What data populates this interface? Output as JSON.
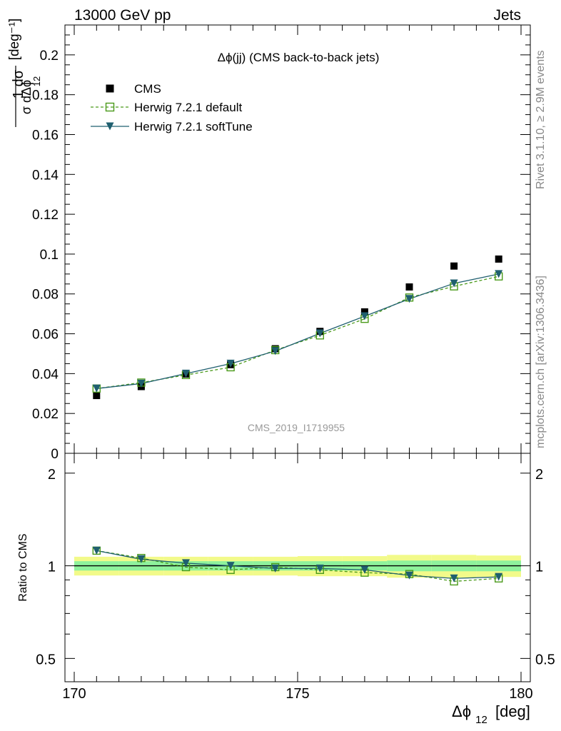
{
  "header": {
    "left": "13000 GeV pp",
    "right": "Jets"
  },
  "side_text": {
    "rivet": "Rivet 3.1.10, ≥ 2.9M events",
    "mcplots": "mcplots.cern.ch [arXiv:1306.3436]"
  },
  "chart_data": {
    "type": "scatter",
    "title": "Δϕ(jj) (CMS back-to-back jets)",
    "analysis_id": "CMS_2019_I1719955",
    "xlabel": "Δϕ",
    "xlabel_sub": "12",
    "xlabel_unit": "[deg]",
    "ylabel_main": "1/σ dσ/dΔϕ 12 [deg-1]",
    "ylabel_ratio": "Ratio to CMS",
    "xlim": [
      170,
      180
    ],
    "ylim_main": [
      0,
      0.215
    ],
    "ylim_ratio": [
      0.42,
      2.32
    ],
    "x_ticks": [
      "170",
      "175",
      "180"
    ],
    "y_ticks_main": [
      "0",
      "0.02",
      "0.04",
      "0.06",
      "0.08",
      "0.1",
      "0.12",
      "0.14",
      "0.16",
      "0.18",
      "0.2"
    ],
    "y_ticks_ratio": [
      "0.5",
      "1",
      "2"
    ],
    "legend_position": "top-left",
    "x": [
      170.5,
      171.5,
      172.5,
      173.5,
      174.5,
      175.5,
      176.5,
      177.5,
      178.5,
      179.5
    ],
    "series": [
      {
        "name": "CMS",
        "marker": "square-filled",
        "color": "#000000",
        "values": [
          0.029,
          0.0335,
          0.0398,
          0.0445,
          0.0525,
          0.0612,
          0.071,
          0.0835,
          0.094,
          0.0975
        ],
        "ratio": [
          1,
          1,
          1,
          1,
          1,
          1,
          1,
          1,
          1,
          1
        ]
      },
      {
        "name": "Herwig 7.2.1 default",
        "marker": "square-open",
        "line": "dashed",
        "color": "#4a9a1a",
        "values": [
          0.0325,
          0.0355,
          0.0393,
          0.0432,
          0.0518,
          0.0592,
          0.0675,
          0.0782,
          0.0838,
          0.0888
        ],
        "ratio": [
          1.12,
          1.06,
          0.99,
          0.97,
          0.99,
          0.97,
          0.95,
          0.94,
          0.89,
          0.91
        ]
      },
      {
        "name": "Herwig 7.2.1 softTune",
        "marker": "triangle-down-filled",
        "line": "solid",
        "color": "#1f5f6f",
        "values": [
          0.0325,
          0.035,
          0.04,
          0.045,
          0.0513,
          0.0602,
          0.0688,
          0.0775,
          0.0853,
          0.09
        ],
        "ratio": [
          1.12,
          1.05,
          1.02,
          1.0,
          0.98,
          0.98,
          0.97,
          0.93,
          0.91,
          0.92
        ]
      }
    ],
    "uncertainty_band": {
      "inner_color": "#8ef29c",
      "outer_color": "#f2fa8a",
      "inner": [
        0.035,
        0.035,
        0.035,
        0.035,
        0.035,
        0.035,
        0.035,
        0.04,
        0.04,
        0.04
      ],
      "outer": [
        0.07,
        0.07,
        0.07,
        0.07,
        0.07,
        0.075,
        0.075,
        0.085,
        0.085,
        0.08
      ]
    }
  }
}
